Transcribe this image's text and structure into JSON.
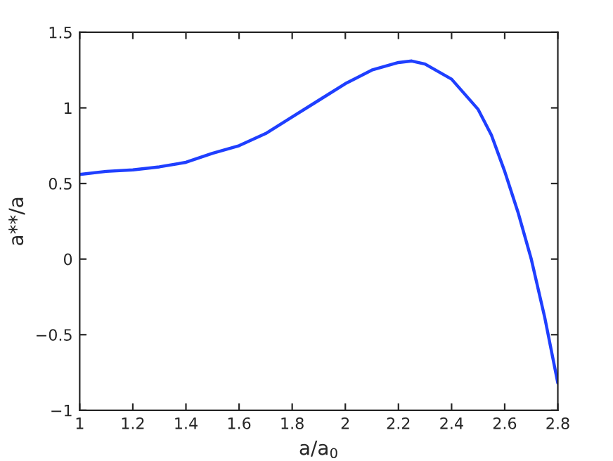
{
  "chart_data": {
    "type": "line",
    "xlabel": "a/a$_{0}$",
    "ylabel": "a**/a",
    "x": [
      1,
      1.1,
      1.2,
      1.3,
      1.4,
      1.5,
      1.6,
      1.7,
      1.8,
      1.9,
      2.0,
      2.1,
      2.2,
      2.25,
      2.3,
      2.4,
      2.5,
      2.55,
      2.6,
      2.65,
      2.7,
      2.75,
      2.8
    ],
    "series": [
      {
        "color": "#1f3fff",
        "values": [
          0.56,
          0.58,
          0.59,
          0.61,
          0.64,
          0.7,
          0.75,
          0.83,
          0.94,
          1.05,
          1.16,
          1.25,
          1.3,
          1.31,
          1.29,
          1.19,
          0.99,
          0.82,
          0.58,
          0.31,
          0.0,
          -0.38,
          -0.82
        ]
      }
    ],
    "xlim": [
      1,
      2.8
    ],
    "ylim": [
      -1,
      1.5
    ],
    "xticks": [
      1,
      1.2,
      1.4,
      1.6,
      1.8,
      2,
      2.2,
      2.4,
      2.6,
      2.8
    ],
    "yticks": [
      -1,
      -0.5,
      0,
      0.5,
      1,
      1.5
    ],
    "grid": false,
    "legend": false
  }
}
